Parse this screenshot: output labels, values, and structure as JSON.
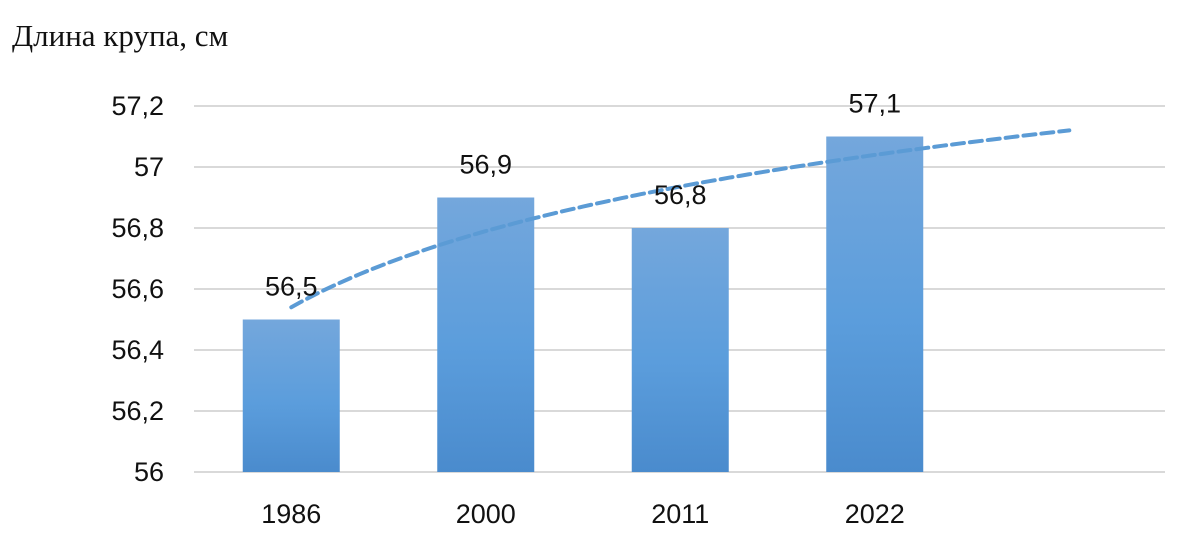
{
  "chart_data": {
    "type": "bar",
    "title": "",
    "ylabel": "Длина крупа, см",
    "xlabel": "",
    "categories": [
      "1986",
      "2000",
      "2011",
      "2022"
    ],
    "series": [
      {
        "values": [
          56.5,
          56.9,
          56.8,
          57.1
        ],
        "color": "#5b9bd5"
      }
    ],
    "data_labels": [
      "56,5",
      "56,9",
      "56,8",
      "57,1"
    ],
    "y_ticks": [
      56,
      56.2,
      56.4,
      56.6,
      56.8,
      57,
      57.2
    ],
    "y_tick_labels": [
      "56",
      "56,2",
      "56,4",
      "56,6",
      "56,8",
      "57",
      "57,2"
    ],
    "ylim": [
      56,
      57.2
    ],
    "grid": true,
    "legend": "none",
    "trendline": {
      "type": "logarithmic",
      "style": "dashed",
      "color": "#5b9bd5",
      "x_start": 1,
      "x_end": 5,
      "y_start": 56.54,
      "y_end": 57.12
    }
  }
}
